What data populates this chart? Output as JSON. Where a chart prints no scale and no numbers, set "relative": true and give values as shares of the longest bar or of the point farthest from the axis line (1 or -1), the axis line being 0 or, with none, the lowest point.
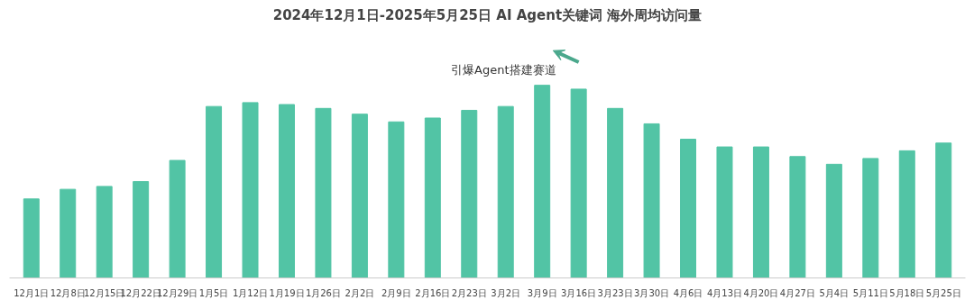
{
  "chart_data": {
    "type": "bar",
    "title": "2024年12月1日-2025年5月25日 AI Agent关键词 海外周均访问量",
    "relative": true,
    "grid": false,
    "categories": [
      "12月1日",
      "12月8日",
      "12月15日",
      "12月22日",
      "12月29日",
      "1月5日",
      "1月12日",
      "1月19日",
      "1月26日",
      "2月2日",
      "2月9日",
      "2月16日",
      "2月23日",
      "3月2日",
      "3月9日",
      "3月16日",
      "3月23日",
      "3月30日",
      "4月6日",
      "4月13日",
      "4月20日",
      "4月27日",
      "5月4日",
      "5月11日",
      "5月18日",
      "5月25日"
    ],
    "values": [
      0.41,
      0.46,
      0.475,
      0.5,
      0.61,
      0.89,
      0.91,
      0.9,
      0.88,
      0.85,
      0.81,
      0.83,
      0.87,
      0.89,
      1,
      0.98,
      0.88,
      0.8,
      0.72,
      0.68,
      0.68,
      0.63,
      0.59,
      0.62,
      0.66,
      0.7
    ],
    "color": "#52c4a5",
    "annotations": [
      "引爆Agent搭建赛道"
    ]
  }
}
